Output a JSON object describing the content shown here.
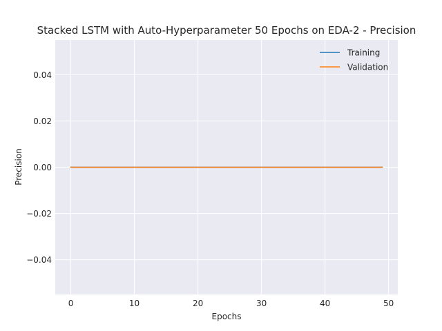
{
  "chart_data": {
    "type": "line",
    "title": "Stacked LSTM with Auto-Hyperparameter 50 Epochs on EDA-2 - Precision",
    "xlabel": "Epochs",
    "ylabel": "Precision",
    "xlim": [
      -2.45,
      51.45
    ],
    "ylim": [
      -0.055,
      0.055
    ],
    "xticks": [
      0,
      10,
      20,
      30,
      40,
      50
    ],
    "yticks": [
      -0.04,
      -0.02,
      0.0,
      0.02,
      0.04
    ],
    "xtick_labels": [
      "0",
      "10",
      "20",
      "30",
      "40",
      "50"
    ],
    "ytick_labels": [
      "−0.04",
      "−0.02",
      "0.00",
      "0.02",
      "0.04"
    ],
    "grid": true,
    "legend_position": "upper right",
    "x": [
      0,
      1,
      2,
      3,
      4,
      5,
      6,
      7,
      8,
      9,
      10,
      11,
      12,
      13,
      14,
      15,
      16,
      17,
      18,
      19,
      20,
      21,
      22,
      23,
      24,
      25,
      26,
      27,
      28,
      29,
      30,
      31,
      32,
      33,
      34,
      35,
      36,
      37,
      38,
      39,
      40,
      41,
      42,
      43,
      44,
      45,
      46,
      47,
      48,
      49
    ],
    "series": [
      {
        "name": "Training",
        "color": "#1f77b4",
        "values": [
          0,
          0,
          0,
          0,
          0,
          0,
          0,
          0,
          0,
          0,
          0,
          0,
          0,
          0,
          0,
          0,
          0,
          0,
          0,
          0,
          0,
          0,
          0,
          0,
          0,
          0,
          0,
          0,
          0,
          0,
          0,
          0,
          0,
          0,
          0,
          0,
          0,
          0,
          0,
          0,
          0,
          0,
          0,
          0,
          0,
          0,
          0,
          0,
          0,
          0
        ]
      },
      {
        "name": "Validation",
        "color": "#ff7f0e",
        "values": [
          0,
          0,
          0,
          0,
          0,
          0,
          0,
          0,
          0,
          0,
          0,
          0,
          0,
          0,
          0,
          0,
          0,
          0,
          0,
          0,
          0,
          0,
          0,
          0,
          0,
          0,
          0,
          0,
          0,
          0,
          0,
          0,
          0,
          0,
          0,
          0,
          0,
          0,
          0,
          0,
          0,
          0,
          0,
          0,
          0,
          0,
          0,
          0,
          0,
          0
        ]
      }
    ]
  }
}
